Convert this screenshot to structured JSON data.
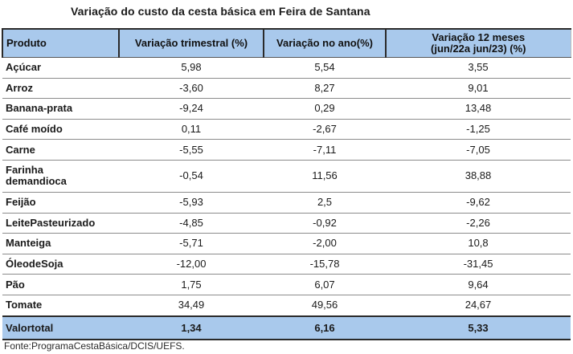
{
  "title": "Variação do custo da cesta básica em Feira de Santana",
  "headers": {
    "produto": "Produto",
    "trimestral": "Variação trimestral (%)",
    "ano": "Variação no ano(%)",
    "doze_meses_line1": "Variação 12 meses",
    "doze_meses_line2": "(jun/22a jun/23) (%)"
  },
  "rows": [
    {
      "produto": "Açúcar",
      "trimestral": "5,98",
      "ano": "5,54",
      "doze": "3,55"
    },
    {
      "produto": "Arroz",
      "trimestral": "-3,60",
      "ano": "8,27",
      "doze": "9,01"
    },
    {
      "produto": "Banana-prata",
      "trimestral": "-9,24",
      "ano": "0,29",
      "doze": "13,48"
    },
    {
      "produto": "Café moído",
      "trimestral": "0,11",
      "ano": "-2,67",
      "doze": "-1,25"
    },
    {
      "produto": "Carne",
      "trimestral": "-5,55",
      "ano": "-7,11",
      "doze": "-7,05"
    },
    {
      "produto_line1": "Farinha",
      "produto_line2": "demandioca",
      "trimestral": "-0,54",
      "ano": "11,56",
      "doze": "38,88"
    },
    {
      "produto": "Feijão",
      "trimestral": "-5,93",
      "ano": "2,5",
      "doze": "-9,62"
    },
    {
      "produto": "LeitePasteurizado",
      "trimestral": "-4,85",
      "ano": "-0,92",
      "doze": "-2,26"
    },
    {
      "produto": "Manteiga",
      "trimestral": "-5,71",
      "ano": "-2,00",
      "doze": "10,8"
    },
    {
      "produto": "ÓleodeSoja",
      "trimestral": "-12,00",
      "ano": "-15,78",
      "doze": "-31,45"
    },
    {
      "produto": "Pão",
      "trimestral": "1,75",
      "ano": "6,07",
      "doze": "9,64"
    },
    {
      "produto": "Tomate",
      "trimestral": "34,49",
      "ano": "49,56",
      "doze": "24,67"
    }
  ],
  "total": {
    "produto": "Valortotal",
    "trimestral": "1,34",
    "ano": "6,16",
    "doze": "5,33"
  },
  "source": "Fonte:ProgramaCestaBásica/DCIS/UEFS.",
  "colors": {
    "header_bg": "#a9c9ec",
    "border": "#2a2a2a",
    "row_line": "#8b8b8b"
  }
}
